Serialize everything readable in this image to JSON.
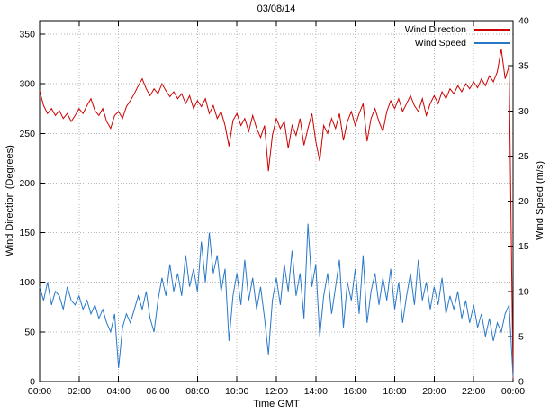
{
  "chart_data": {
    "type": "line",
    "title": "03/08/14",
    "xlabel": "Time GMT",
    "ylabel_left": "Wind Direction (Degrees)",
    "ylabel_right": "Wind Speed (m/s)",
    "grid": true,
    "legend_position": "top-right-inside",
    "x_range": [
      0,
      24
    ],
    "x_ticks": {
      "hours": [
        0,
        2,
        4,
        6,
        8,
        10,
        12,
        14,
        16,
        18,
        20,
        22,
        24
      ],
      "labels": [
        "00:00",
        "02:00",
        "04:00",
        "06:00",
        "08:00",
        "10:00",
        "12:00",
        "14:00",
        "16:00",
        "18:00",
        "20:00",
        "22:00",
        "00:00"
      ]
    },
    "y_left_ticks": [
      0,
      50,
      100,
      150,
      200,
      250,
      300,
      350
    ],
    "y_left_max_tick": 350,
    "y_right_ticks": [
      0,
      5,
      10,
      15,
      20,
      25,
      30,
      35,
      40
    ],
    "y_right_range": [
      0,
      40
    ],
    "series": [
      {
        "name": "Wind Direction",
        "axis": "left",
        "color": "#cc0000",
        "x_step_hours": 0.2,
        "values": [
          293,
          278,
          270,
          275,
          268,
          273,
          265,
          270,
          262,
          268,
          275,
          270,
          278,
          285,
          273,
          268,
          275,
          262,
          255,
          268,
          272,
          265,
          277,
          283,
          290,
          298,
          305,
          295,
          288,
          295,
          290,
          300,
          293,
          287,
          292,
          285,
          290,
          280,
          288,
          275,
          283,
          277,
          285,
          270,
          278,
          265,
          272,
          258,
          237,
          263,
          270,
          258,
          265,
          252,
          268,
          255,
          246,
          258,
          212,
          248,
          265,
          255,
          262,
          235,
          258,
          248,
          265,
          238,
          255,
          270,
          242,
          222,
          258,
          250,
          265,
          255,
          270,
          243,
          262,
          272,
          258,
          270,
          280,
          242,
          265,
          275,
          262,
          252,
          272,
          283,
          275,
          285,
          272,
          280,
          288,
          278,
          272,
          285,
          268,
          280,
          288,
          280,
          292,
          285,
          295,
          290,
          298,
          292,
          300,
          295,
          302,
          296,
          305,
          298,
          308,
          302,
          312,
          335,
          305,
          318,
          3
        ]
      },
      {
        "name": "Wind Speed",
        "axis": "right",
        "color": "#2878c8",
        "x_step_hours": 0.2,
        "values": [
          10.5,
          9,
          11,
          8.5,
          10,
          9.5,
          8,
          10.5,
          9,
          8.5,
          9.5,
          8,
          9,
          7.5,
          8.5,
          7,
          8,
          6.5,
          5.5,
          7.5,
          1.5,
          6,
          7.5,
          6.5,
          8,
          9.5,
          8,
          10,
          7,
          5.5,
          9,
          11.5,
          9.5,
          13,
          10,
          12,
          9.5,
          14,
          10.5,
          12.5,
          10,
          15.5,
          11,
          16.5,
          12,
          14,
          10,
          12.5,
          4.5,
          9.5,
          12,
          8.5,
          13.5,
          9,
          11.5,
          8,
          10.5,
          7,
          3,
          9,
          11.5,
          8.5,
          13,
          10,
          14.5,
          9.5,
          12,
          7,
          17.5,
          10.5,
          13,
          5,
          9.5,
          12,
          7.5,
          10.5,
          13.5,
          6,
          11,
          9,
          12.5,
          7.5,
          14,
          6.5,
          10,
          12,
          8.5,
          11.5,
          9,
          12.5,
          8,
          11,
          6.5,
          9.5,
          12,
          8.5,
          13.5,
          9,
          11,
          8,
          10.5,
          8.5,
          11.5,
          7.5,
          9.5,
          8,
          10,
          7,
          9,
          6.5,
          8.5,
          6,
          7.5,
          5,
          7,
          4.5,
          6.5,
          5.5,
          7.5,
          8.5,
          0.5
        ]
      }
    ],
    "style": {
      "grid_color": "#b5b5b5",
      "border_color": "#000000",
      "background": "#ffffff"
    }
  }
}
